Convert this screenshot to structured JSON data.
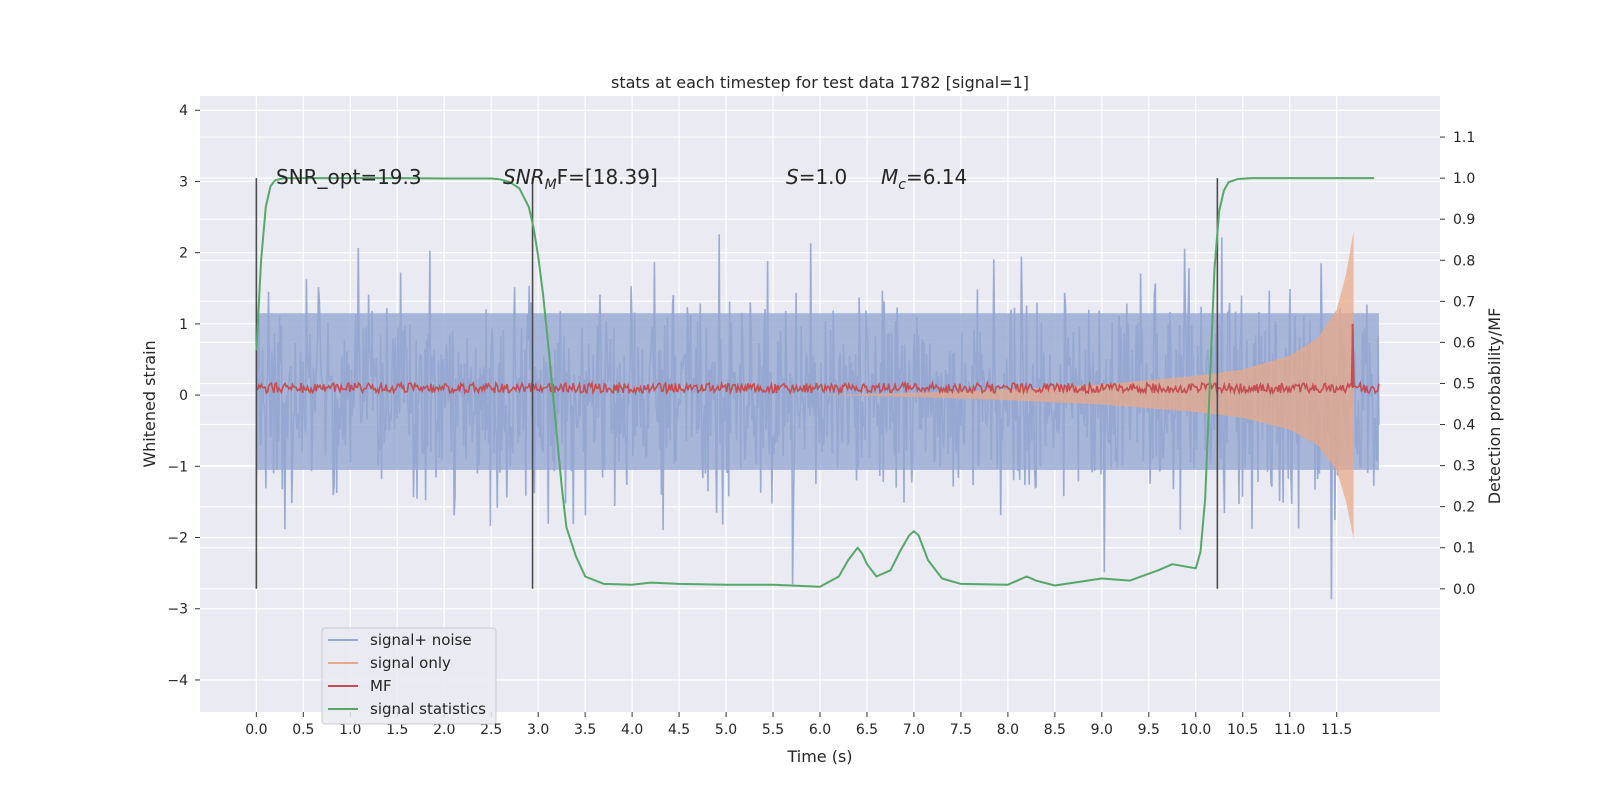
{
  "chart_data": {
    "type": "line",
    "title": "stats at each timestep for test data 1782 [signal=1]",
    "xlabel": "Time (s)",
    "ylabel": "Whitened strain",
    "ylabel_right": "Detection probability/MF",
    "xlim": [
      -0.6,
      12.6
    ],
    "ylim": [
      -4.45,
      4.2
    ],
    "ylim_right": [
      -0.3,
      1.2
    ],
    "x_ticks": [
      "0.0",
      "0.5",
      "1.0",
      "1.5",
      "2.0",
      "2.5",
      "3.0",
      "3.5",
      "4.0",
      "4.5",
      "5.0",
      "5.5",
      "6.0",
      "6.5",
      "7.0",
      "7.5",
      "8.0",
      "8.5",
      "9.0",
      "9.5",
      "10.0",
      "10.5",
      "11.0",
      "11.5"
    ],
    "y_ticks": [
      "−4",
      "−3",
      "−2",
      "−1",
      "0",
      "1",
      "2",
      "3",
      "4"
    ],
    "y_ticks_right": [
      "0.0",
      "0.1",
      "0.2",
      "0.3",
      "0.4",
      "0.5",
      "0.6",
      "0.7",
      "0.8",
      "0.9",
      "1.0",
      "1.1"
    ],
    "grid": true,
    "legend_position": "lower-left",
    "annotations": {
      "snr_opt": "SNR_opt=19.3",
      "snr_mf_main": "SNR",
      "snr_mf_sub": "M",
      "snr_mf_rest": "F=[18.39]",
      "s_main": "S",
      "s_rest": "=1.0",
      "mc_main": "M",
      "mc_sub": "c",
      "mc_rest": "=6.14"
    },
    "detection_markers_x": [
      0.0,
      2.94,
      10.23
    ],
    "colors": {
      "background": "#eaeaf2",
      "grid": "#ffffff",
      "signal_noise": "#95a8d1",
      "signal_only": "#dd8452",
      "mf": "#c44e52",
      "signal_statistics": "#55a868",
      "marker": "#4d4d4d"
    },
    "series": [
      {
        "name": "signal+ noise",
        "description_range": [
          -1.7,
          1.8
        ],
        "x_range": [
          0.0,
          11.95
        ]
      },
      {
        "name": "signal only",
        "envelope": [
          [
            0.0,
            0.0
          ],
          [
            6.0,
            0.0
          ],
          [
            7.0,
            0.03
          ],
          [
            8.0,
            0.08
          ],
          [
            9.0,
            0.15
          ],
          [
            10.0,
            0.27
          ],
          [
            10.5,
            0.36
          ],
          [
            11.0,
            0.55
          ],
          [
            11.3,
            0.8
          ],
          [
            11.5,
            1.2
          ],
          [
            11.6,
            1.7
          ],
          [
            11.68,
            2.3
          ]
        ]
      },
      {
        "name": "MF",
        "baseline": 0.1,
        "peak": {
          "x": 11.67,
          "y": 1.0
        }
      },
      {
        "name": "signal statistics",
        "x": [
          0.0,
          0.05,
          0.1,
          0.15,
          0.2,
          0.3,
          0.5,
          1.0,
          1.5,
          2.0,
          2.5,
          2.6,
          2.7,
          2.8,
          2.9,
          2.95,
          3.0,
          3.05,
          3.1,
          3.15,
          3.2,
          3.25,
          3.3,
          3.4,
          3.5,
          3.7,
          4.0,
          4.2,
          4.5,
          5.0,
          5.5,
          6.0,
          6.2,
          6.3,
          6.4,
          6.45,
          6.5,
          6.6,
          6.75,
          6.85,
          6.95,
          7.0,
          7.05,
          7.15,
          7.3,
          7.5,
          8.0,
          8.1,
          8.2,
          8.3,
          8.5,
          9.0,
          9.3,
          9.6,
          9.75,
          10.0,
          10.05,
          10.1,
          10.15,
          10.2,
          10.25,
          10.3,
          10.35,
          10.45,
          10.6,
          11.0,
          11.5,
          11.9
        ],
        "y": [
          0.58,
          0.8,
          0.93,
          0.98,
          0.995,
          1.0,
          1.0,
          1.0,
          1.0,
          0.999,
          0.999,
          0.997,
          0.99,
          0.975,
          0.93,
          0.88,
          0.81,
          0.72,
          0.61,
          0.49,
          0.37,
          0.25,
          0.15,
          0.08,
          0.03,
          0.012,
          0.01,
          0.015,
          0.012,
          0.01,
          0.01,
          0.005,
          0.03,
          0.07,
          0.1,
          0.085,
          0.06,
          0.03,
          0.045,
          0.09,
          0.13,
          0.14,
          0.13,
          0.07,
          0.025,
          0.012,
          0.01,
          0.02,
          0.03,
          0.02,
          0.008,
          0.025,
          0.02,
          0.045,
          0.06,
          0.05,
          0.09,
          0.22,
          0.5,
          0.78,
          0.92,
          0.97,
          0.99,
          0.998,
          1.0,
          1.0,
          1.0,
          1.0
        ]
      }
    ]
  },
  "legend": {
    "items": [
      {
        "label": "signal+ noise",
        "color": "#95a8d1"
      },
      {
        "label": "signal only",
        "color": "#e8a98a"
      },
      {
        "label": "MF",
        "color": "#c44e52"
      },
      {
        "label": "signal statistics",
        "color": "#55a868"
      }
    ]
  }
}
